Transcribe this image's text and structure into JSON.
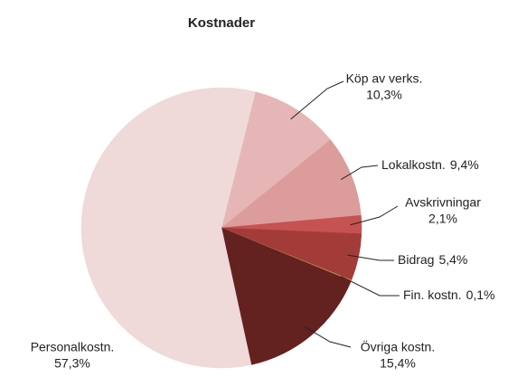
{
  "chart_data": {
    "type": "pie",
    "title": "Kostnader",
    "categories": [
      "Köp av verks.",
      "Lokalkostn.",
      "Avskrivningar",
      "Bidrag",
      "Fin. kostn.",
      "Övriga kostn.",
      "Personalkostn."
    ],
    "values": [
      10.3,
      9.4,
      2.1,
      5.4,
      0.1,
      15.4,
      57.3
    ],
    "value_labels": [
      "10,3%",
      "9,4%",
      "2,1%",
      "5,4%",
      "0,1%",
      "15,4%",
      "57,3%"
    ],
    "colors": [
      "#e6b6b6",
      "#dc9c9c",
      "#c65252",
      "#a33c38",
      "#c89a5a",
      "#632120",
      "#f0d9d9"
    ]
  }
}
